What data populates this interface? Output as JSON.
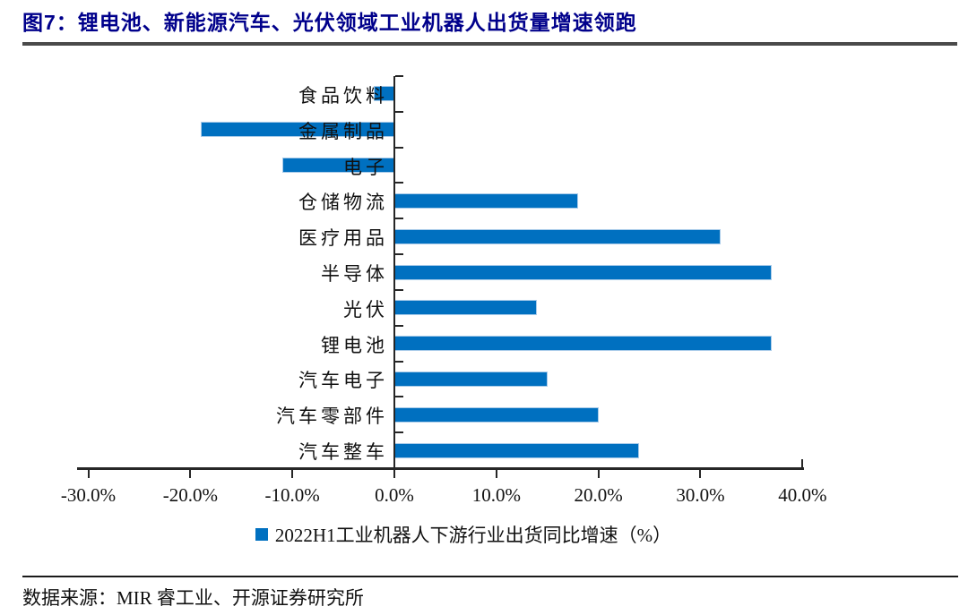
{
  "header": {
    "title": "图7：锂电池、新能源汽车、光伏领域工业机器人出货量增速领跑"
  },
  "chart_data": {
    "type": "bar",
    "orientation": "horizontal",
    "title": "",
    "categories": [
      "食品饮料",
      "金属制品",
      "电子",
      "仓储物流",
      "医疗用品",
      "半导体",
      "光伏",
      "锂电池",
      "汽车电子",
      "汽车零部件",
      "汽车整车"
    ],
    "values": [
      -2,
      -19,
      -11,
      18,
      32,
      37,
      14,
      37,
      15,
      20,
      24
    ],
    "unit": "%",
    "xlim": [
      -30,
      40
    ],
    "x_tick_values": [
      -30,
      -20,
      -10,
      0,
      10,
      20,
      30,
      40
    ],
    "x_tick_labels": [
      "-30.0%",
      "-20.0%",
      "-10.0%",
      "0.0%",
      "10.0%",
      "20.0%",
      "30.0%",
      "40.0%"
    ],
    "grid": false,
    "legend_position": "bottom",
    "legend": "2022H1工业机器人下游行业出货同比增速（%）",
    "bar_color": "#0070C0"
  },
  "footer": {
    "source": "数据来源：MIR 睿工业、开源证券研究所"
  },
  "colors": {
    "bar": "#0070C0",
    "title": "#00008B",
    "title_rule": "#4a4a4a",
    "axis": "#262626",
    "text": "#111111"
  }
}
